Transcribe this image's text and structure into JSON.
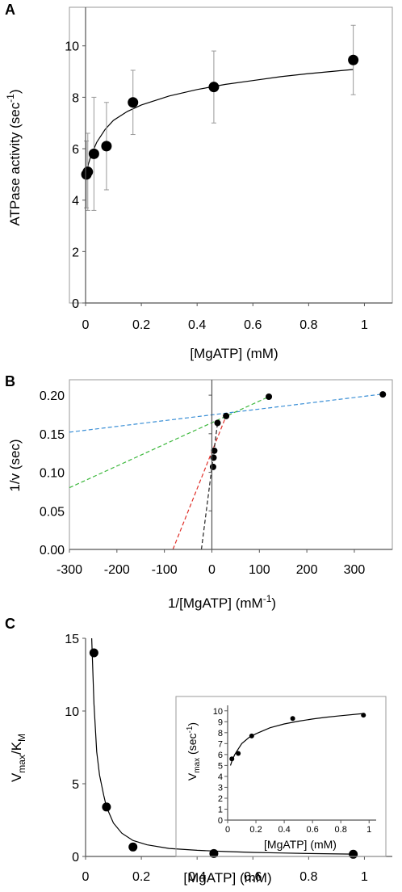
{
  "figure": {
    "panels": [
      "A",
      "B",
      "C"
    ]
  },
  "chart_data": [
    {
      "panel": "A",
      "type": "scatter",
      "xlabel": "[MgATP] (mM)",
      "ylabel": "ATPase activity  (sec",
      "ylabel_sup": "-1",
      "ylabel_tail": ")",
      "xlim": [
        0,
        1.1
      ],
      "ylim": [
        0,
        11.5
      ],
      "xticks": [
        0,
        0.2,
        0.4,
        0.6,
        0.8,
        1
      ],
      "xtick_labels": [
        "0",
        "0.2",
        "0.4",
        "0.6",
        "0.8",
        "1"
      ],
      "yticks": [
        0,
        2,
        4,
        6,
        8,
        10
      ],
      "ytick_labels": [
        "0",
        "2",
        "4",
        "6",
        "8",
        "10"
      ],
      "grid": false,
      "points": [
        {
          "x": 0.003,
          "y": 5.0,
          "err": 1.3
        },
        {
          "x": 0.008,
          "y": 5.1,
          "err": 1.5
        },
        {
          "x": 0.03,
          "y": 5.8,
          "err": 2.2
        },
        {
          "x": 0.075,
          "y": 6.1,
          "err": 1.7
        },
        {
          "x": 0.17,
          "y": 7.8,
          "err": 1.25
        },
        {
          "x": 0.46,
          "y": 8.4,
          "err": 1.4
        },
        {
          "x": 0.96,
          "y": 9.45,
          "err": 1.35
        }
      ],
      "fit_curve": [
        {
          "x": 0.0,
          "y": 4.9
        },
        {
          "x": 0.005,
          "y": 5.1
        },
        {
          "x": 0.01,
          "y": 5.4
        },
        {
          "x": 0.02,
          "y": 5.75
        },
        {
          "x": 0.04,
          "y": 6.25
        },
        {
          "x": 0.07,
          "y": 6.75
        },
        {
          "x": 0.1,
          "y": 7.1
        },
        {
          "x": 0.15,
          "y": 7.45
        },
        {
          "x": 0.2,
          "y": 7.7
        },
        {
          "x": 0.3,
          "y": 8.05
        },
        {
          "x": 0.4,
          "y": 8.3
        },
        {
          "x": 0.5,
          "y": 8.5
        },
        {
          "x": 0.6,
          "y": 8.65
        },
        {
          "x": 0.7,
          "y": 8.8
        },
        {
          "x": 0.8,
          "y": 8.92
        },
        {
          "x": 0.9,
          "y": 9.02
        },
        {
          "x": 0.96,
          "y": 9.08
        }
      ]
    },
    {
      "panel": "B",
      "type": "scatter",
      "xlabel": "1/[MgATP] (mM",
      "xlabel_sup": "-1",
      "xlabel_tail": ")",
      "ylabel": "1/v (sec)",
      "xlim": [
        -300,
        380
      ],
      "ylim": [
        0,
        0.22
      ],
      "xticks": [
        -300,
        -200,
        -100,
        0,
        100,
        200,
        300
      ],
      "xtick_labels": [
        "-300",
        "-200",
        "-100",
        "0",
        "100",
        "200",
        "300"
      ],
      "yticks": [
        0,
        0.05,
        0.1,
        0.15,
        0.2
      ],
      "ytick_labels": [
        "0.00",
        "0.05",
        "0.10",
        "0.15",
        "0.20"
      ],
      "grid": false,
      "points": [
        {
          "x": 2.5,
          "y": 0.107
        },
        {
          "x": 3.5,
          "y": 0.119
        },
        {
          "x": 5,
          "y": 0.128
        },
        {
          "x": 12,
          "y": 0.164
        },
        {
          "x": 30,
          "y": 0.173
        },
        {
          "x": 120,
          "y": 0.198
        },
        {
          "x": 360,
          "y": 0.201
        }
      ],
      "lines": [
        {
          "color": "#3a8fd6",
          "points": [
            {
              "x": -300,
              "y": 0.152
            },
            {
              "x": 360,
              "y": 0.2015
            }
          ]
        },
        {
          "color": "#3db83d",
          "points": [
            {
              "x": -300,
              "y": 0.08
            },
            {
              "x": 120,
              "y": 0.198
            }
          ]
        },
        {
          "color": "#e0302a",
          "points": [
            {
              "x": -82,
              "y": 0.0
            },
            {
              "x": 30,
              "y": 0.173
            }
          ]
        },
        {
          "color": "#222222",
          "points": [
            {
              "x": -22,
              "y": 0.0
            },
            {
              "x": 12,
              "y": 0.164
            }
          ]
        }
      ]
    },
    {
      "panel": "C",
      "type": "scatter",
      "xlabel": "[MgATP] (mM)",
      "ylabel": "V",
      "ylabel_sub1": "max",
      "ylabel_mid": "/K",
      "ylabel_sub2": "M",
      "xlim": [
        0,
        1.1
      ],
      "ylim": [
        0,
        15
      ],
      "xticks": [
        0,
        0.2,
        0.4,
        0.6,
        0.8,
        1
      ],
      "xtick_labels": [
        "0",
        "0.2",
        "0.4",
        "0.6",
        "0.8",
        "1"
      ],
      "yticks": [
        0,
        5,
        10,
        15
      ],
      "ytick_labels": [
        "0",
        "5",
        "10",
        "15"
      ],
      "grid": false,
      "points": [
        {
          "x": 0.03,
          "y": 14.0
        },
        {
          "x": 0.075,
          "y": 3.4
        },
        {
          "x": 0.17,
          "y": 0.65
        },
        {
          "x": 0.46,
          "y": 0.2
        },
        {
          "x": 0.96,
          "y": 0.15
        }
      ],
      "fit_curve": [
        {
          "x": 0.022,
          "y": 15
        },
        {
          "x": 0.03,
          "y": 10.5
        },
        {
          "x": 0.04,
          "y": 7.2
        },
        {
          "x": 0.05,
          "y": 5.6
        },
        {
          "x": 0.065,
          "y": 4.2
        },
        {
          "x": 0.075,
          "y": 3.4
        },
        {
          "x": 0.1,
          "y": 2.3
        },
        {
          "x": 0.13,
          "y": 1.6
        },
        {
          "x": 0.17,
          "y": 1.1
        },
        {
          "x": 0.22,
          "y": 0.8
        },
        {
          "x": 0.3,
          "y": 0.55
        },
        {
          "x": 0.4,
          "y": 0.42
        },
        {
          "x": 0.5,
          "y": 0.34
        },
        {
          "x": 0.6,
          "y": 0.28
        },
        {
          "x": 0.7,
          "y": 0.24
        },
        {
          "x": 0.8,
          "y": 0.2
        },
        {
          "x": 0.96,
          "y": 0.16
        }
      ],
      "inset": {
        "type": "scatter",
        "xlabel": "[MgATP] (mM)",
        "ylabel": "V",
        "ylabel_sub": "max",
        "ylabel_mid": " (sec",
        "ylabel_sup": "-1",
        "ylabel_tail": ")",
        "xlim": [
          0,
          1.05
        ],
        "ylim": [
          0,
          10.5
        ],
        "xticks": [
          0,
          0.2,
          0.4,
          0.6,
          0.8,
          1
        ],
        "xtick_labels": [
          "0",
          "0.2",
          "0.4",
          "0.6",
          "0.8",
          "1"
        ],
        "yticks": [
          0,
          1,
          2,
          3,
          4,
          5,
          6,
          7,
          8,
          9,
          10
        ],
        "ytick_labels": [
          "0",
          "1",
          "2",
          "3",
          "4",
          "5",
          "6",
          "7",
          "8",
          "9",
          "10"
        ],
        "points": [
          {
            "x": 0.03,
            "y": 5.6
          },
          {
            "x": 0.075,
            "y": 6.1
          },
          {
            "x": 0.17,
            "y": 7.7
          },
          {
            "x": 0.46,
            "y": 9.3
          },
          {
            "x": 0.96,
            "y": 9.6
          }
        ],
        "fit_curve": [
          {
            "x": 0.02,
            "y": 5.0
          },
          {
            "x": 0.03,
            "y": 5.4
          },
          {
            "x": 0.05,
            "y": 6.0
          },
          {
            "x": 0.075,
            "y": 6.5
          },
          {
            "x": 0.1,
            "y": 7.0
          },
          {
            "x": 0.15,
            "y": 7.55
          },
          {
            "x": 0.2,
            "y": 7.9
          },
          {
            "x": 0.3,
            "y": 8.45
          },
          {
            "x": 0.4,
            "y": 8.8
          },
          {
            "x": 0.5,
            "y": 9.05
          },
          {
            "x": 0.6,
            "y": 9.25
          },
          {
            "x": 0.7,
            "y": 9.42
          },
          {
            "x": 0.8,
            "y": 9.55
          },
          {
            "x": 0.96,
            "y": 9.75
          }
        ]
      }
    }
  ]
}
